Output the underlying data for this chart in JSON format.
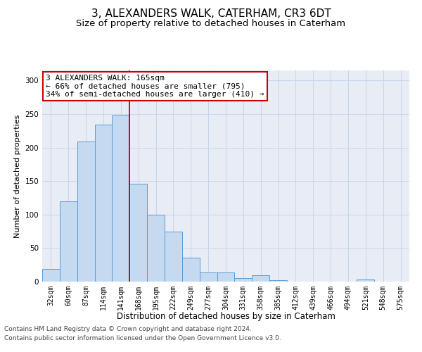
{
  "title1": "3, ALEXANDERS WALK, CATERHAM, CR3 6DT",
  "title2": "Size of property relative to detached houses in Caterham",
  "xlabel": "Distribution of detached houses by size in Caterham",
  "ylabel": "Number of detached properties",
  "bar_labels": [
    "32sqm",
    "60sqm",
    "87sqm",
    "114sqm",
    "141sqm",
    "168sqm",
    "195sqm",
    "222sqm",
    "249sqm",
    "277sqm",
    "304sqm",
    "331sqm",
    "358sqm",
    "385sqm",
    "412sqm",
    "439sqm",
    "466sqm",
    "494sqm",
    "521sqm",
    "548sqm",
    "575sqm"
  ],
  "bar_values": [
    19,
    120,
    209,
    234,
    248,
    146,
    100,
    75,
    36,
    14,
    14,
    5,
    9,
    2,
    0,
    0,
    0,
    0,
    3,
    0,
    0
  ],
  "bar_color": "#c5d9f0",
  "bar_edge_color": "#5b9bd5",
  "property_line_x": 4.5,
  "annotation_line1": "3 ALEXANDERS WALK: 165sqm",
  "annotation_line2": "← 66% of detached houses are smaller (795)",
  "annotation_line3": "34% of semi-detached houses are larger (410) →",
  "annotation_box_color": "#ffffff",
  "annotation_box_edge": "#cc0000",
  "vline_color": "#cc0000",
  "grid_color": "#c8d4e8",
  "background_color": "#e8edf5",
  "footer1": "Contains HM Land Registry data © Crown copyright and database right 2024.",
  "footer2": "Contains public sector information licensed under the Open Government Licence v3.0.",
  "ylim": [
    0,
    315
  ],
  "title1_fontsize": 11,
  "title2_fontsize": 9.5,
  "xlabel_fontsize": 8.5,
  "ylabel_fontsize": 8,
  "tick_fontsize": 7,
  "annotation_fontsize": 8,
  "footer_fontsize": 6.5
}
